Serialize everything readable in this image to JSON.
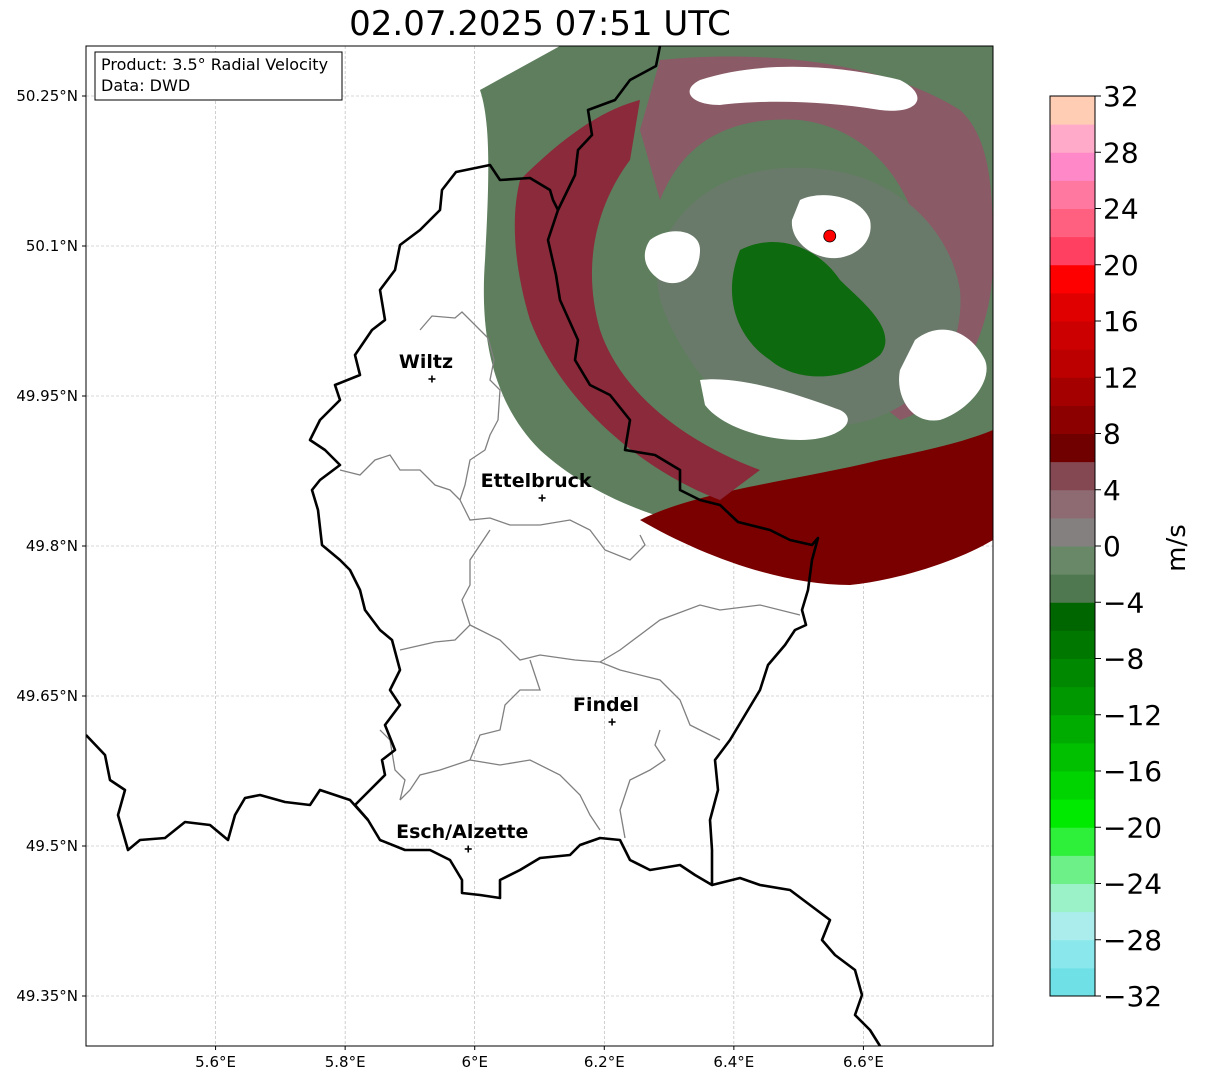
{
  "title": "02.07.2025 07:51 UTC",
  "info_box": {
    "product": "Product: 3.5° Radial Velocity",
    "data": "Data: DWD"
  },
  "map": {
    "lon_range": [
      5.4,
      6.8
    ],
    "lat_range": [
      49.3,
      50.3
    ],
    "lon_ticks": [
      "5.6°E",
      "5.8°E",
      "6°E",
      "6.2°E",
      "6.4°E",
      "6.6°E"
    ],
    "lat_ticks": [
      "50.25°N",
      "50.1°N",
      "49.95°N",
      "49.8°N",
      "49.65°N",
      "49.5°N",
      "49.35°N"
    ],
    "grid": true,
    "radar_site": {
      "lon": 6.548,
      "lat": 50.11,
      "color": "#ff0000"
    },
    "cities": [
      {
        "name": "Wiltz",
        "lon": 5.934,
        "lat": 49.967
      },
      {
        "name": "Ettelbruck",
        "lon": 6.104,
        "lat": 49.848
      },
      {
        "name": "Findel",
        "lon": 6.212,
        "lat": 49.624
      },
      {
        "name": "Esch/Alzette",
        "lon": 5.99,
        "lat": 49.497
      }
    ]
  },
  "colorbar": {
    "label": "m/s",
    "min": -32,
    "max": 32,
    "ticks": [
      "−32",
      "−28",
      "−24",
      "−20",
      "−16",
      "−12",
      "−8",
      "−4",
      "0",
      "4",
      "8",
      "12",
      "16",
      "20",
      "24",
      "28",
      "32"
    ],
    "colors": [
      "#6ee0e6",
      "#8ae8ec",
      "#abecec",
      "#9cf2c8",
      "#6ef088",
      "#2ef03a",
      "#00ea00",
      "#00d400",
      "#00c000",
      "#00ac00",
      "#009800",
      "#008800",
      "#007800",
      "#006600",
      "#507850",
      "#688868",
      "#848080",
      "#8e6a72",
      "#844852",
      "#700000",
      "#8c0000",
      "#a40000",
      "#bc0000",
      "#cc0000",
      "#e00000",
      "#ff0000",
      "#ff4060",
      "#ff6080",
      "#ff78a0",
      "#ff88c8",
      "#ffaac8",
      "#ffccb4"
    ]
  }
}
